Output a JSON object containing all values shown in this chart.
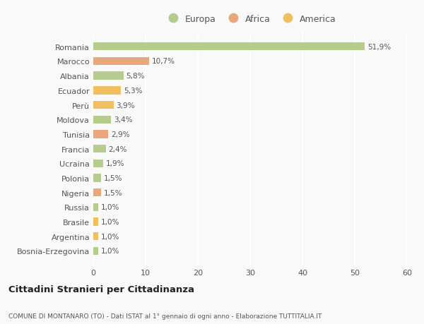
{
  "countries": [
    "Romania",
    "Marocco",
    "Albania",
    "Ecuador",
    "Perù",
    "Moldova",
    "Tunisia",
    "Francia",
    "Ucraina",
    "Polonia",
    "Nigeria",
    "Russia",
    "Brasile",
    "Argentina",
    "Bosnia-Erzegovina"
  ],
  "values": [
    51.9,
    10.7,
    5.8,
    5.3,
    3.9,
    3.4,
    2.9,
    2.4,
    1.9,
    1.5,
    1.5,
    1.0,
    1.0,
    1.0,
    1.0
  ],
  "labels": [
    "51,9%",
    "10,7%",
    "5,8%",
    "5,3%",
    "3,9%",
    "3,4%",
    "2,9%",
    "2,4%",
    "1,9%",
    "1,5%",
    "1,5%",
    "1,0%",
    "1,0%",
    "1,0%",
    "1,0%"
  ],
  "continents": [
    "Europa",
    "Africa",
    "Europa",
    "America",
    "America",
    "Europa",
    "Africa",
    "Europa",
    "Europa",
    "Europa",
    "Africa",
    "Europa",
    "America",
    "America",
    "Europa"
  ],
  "colors": {
    "Europa": "#b5cc8e",
    "Africa": "#e8a87c",
    "America": "#f0c060"
  },
  "xlim": [
    0,
    60
  ],
  "xticks": [
    0,
    10,
    20,
    30,
    40,
    50,
    60
  ],
  "title": "Cittadini Stranieri per Cittadinanza",
  "subtitle": "COMUNE DI MONTANARO (TO) - Dati ISTAT al 1° gennaio di ogni anno - Elaborazione TUTTITALIA.IT",
  "background_color": "#f9f9f9",
  "grid_color": "#ffffff",
  "bar_height": 0.55
}
